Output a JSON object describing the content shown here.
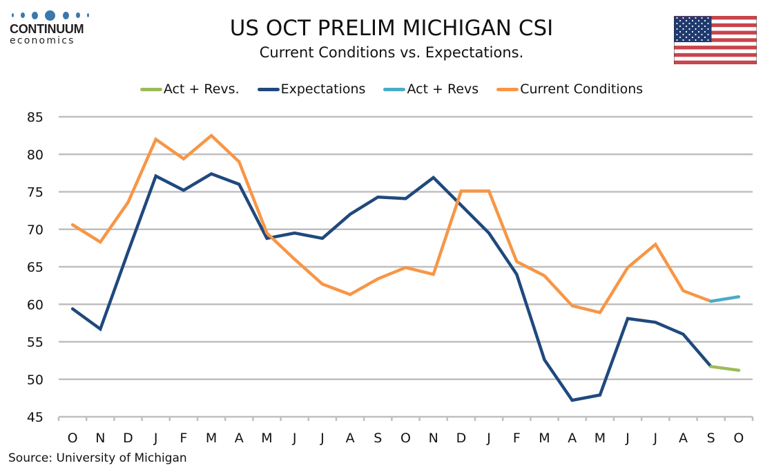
{
  "brand": {
    "name": "CONTINUUM",
    "sub": "economics",
    "accent": "#3a78ad"
  },
  "flag_icon": "us-flag-icon",
  "source": "Source: University of Michigan",
  "chart_data": {
    "type": "line",
    "title": "US OCT PRELIM MICHIGAN CSI",
    "subtitle": "Current Conditions vs. Expectations.",
    "xlabel": "",
    "ylabel": "",
    "ylim": [
      45,
      85
    ],
    "yticks": [
      45,
      50,
      55,
      60,
      65,
      70,
      75,
      80,
      85
    ],
    "grid": true,
    "legend_position": "top",
    "categories": [
      "O",
      "N",
      "D",
      "J",
      "F",
      "M",
      "A",
      "M",
      "J",
      "J",
      "A",
      "S",
      "O",
      "N",
      "D",
      "J",
      "F",
      "M",
      "A",
      "M",
      "J",
      "J",
      "A",
      "S",
      "O"
    ],
    "legend": [
      {
        "name": "Act + Revs.",
        "color": "#9bbb59"
      },
      {
        "name": "Expectations",
        "color": "#1f497d"
      },
      {
        "name": "Act + Revs",
        "color": "#4bacc6"
      },
      {
        "name": "Current Conditions",
        "color": "#f79646"
      }
    ],
    "series": [
      {
        "name": "Expectations",
        "color": "#1f497d",
        "values": [
          59.4,
          56.7,
          67.0,
          77.1,
          75.2,
          77.4,
          76.0,
          68.8,
          69.5,
          68.8,
          72.0,
          74.3,
          74.1,
          76.9,
          73.2,
          69.5,
          64.0,
          52.6,
          47.2,
          47.9,
          58.1,
          57.6,
          56.0,
          51.7,
          null
        ]
      },
      {
        "name": "Act + Revs.",
        "color": "#9bbb59",
        "values": [
          null,
          null,
          null,
          null,
          null,
          null,
          null,
          null,
          null,
          null,
          null,
          null,
          null,
          null,
          null,
          null,
          null,
          null,
          null,
          null,
          null,
          null,
          null,
          51.7,
          51.2
        ]
      },
      {
        "name": "Current Conditions",
        "color": "#f79646",
        "values": [
          70.6,
          68.3,
          73.6,
          82.0,
          79.4,
          82.5,
          79.0,
          69.5,
          66.0,
          62.7,
          61.3,
          63.4,
          64.9,
          64.0,
          75.1,
          75.1,
          65.7,
          63.8,
          59.8,
          58.9,
          64.9,
          68.0,
          61.8,
          60.4,
          null
        ]
      },
      {
        "name": "Act + Revs",
        "color": "#4bacc6",
        "values": [
          null,
          null,
          null,
          null,
          null,
          null,
          null,
          null,
          null,
          null,
          null,
          null,
          null,
          null,
          null,
          null,
          null,
          null,
          null,
          null,
          null,
          null,
          null,
          60.4,
          61.0
        ]
      }
    ]
  }
}
